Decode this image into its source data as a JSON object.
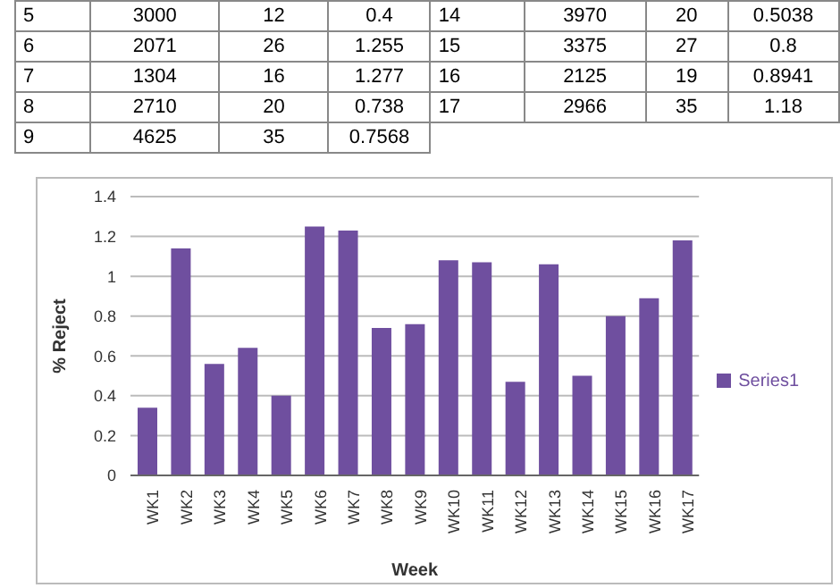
{
  "chart_data": {
    "type": "bar",
    "xlabel": "Week",
    "ylabel": "% Reject",
    "categories": [
      "WK1",
      "WK2",
      "WK3",
      "WK4",
      "WK5",
      "WK6",
      "WK7",
      "WK8",
      "WK9",
      "WK10",
      "WK11",
      "WK12",
      "WK13",
      "WK14",
      "WK15",
      "WK16",
      "WK17"
    ],
    "series": [
      {
        "name": "Series1",
        "color": "#6f4f9f",
        "values": [
          0.34,
          1.14,
          0.56,
          0.64,
          0.4,
          1.25,
          1.23,
          0.74,
          0.76,
          1.08,
          1.07,
          0.47,
          1.06,
          0.5,
          0.8,
          0.89,
          1.18
        ]
      }
    ],
    "ylim": [
      0,
      1.4
    ],
    "yticks": [
      0,
      0.2,
      0.4,
      0.6,
      0.8,
      1,
      1.2,
      1.4
    ],
    "grid": "y",
    "legend": "right",
    "annotations": [
      "5",
      "3000",
      "12",
      "0.4",
      "14",
      "3970",
      "20",
      "0.5038",
      "6",
      "2071",
      "26",
      "1.255",
      "15",
      "3375",
      "27",
      "0.8",
      "7",
      "1304",
      "16",
      "1.277",
      "16",
      "2125",
      "19",
      "0.8941",
      "8",
      "2710",
      "20",
      "0.738",
      "17",
      "2966",
      "35",
      "1.18",
      "9",
      "4625",
      "35",
      "0.7568"
    ]
  }
}
